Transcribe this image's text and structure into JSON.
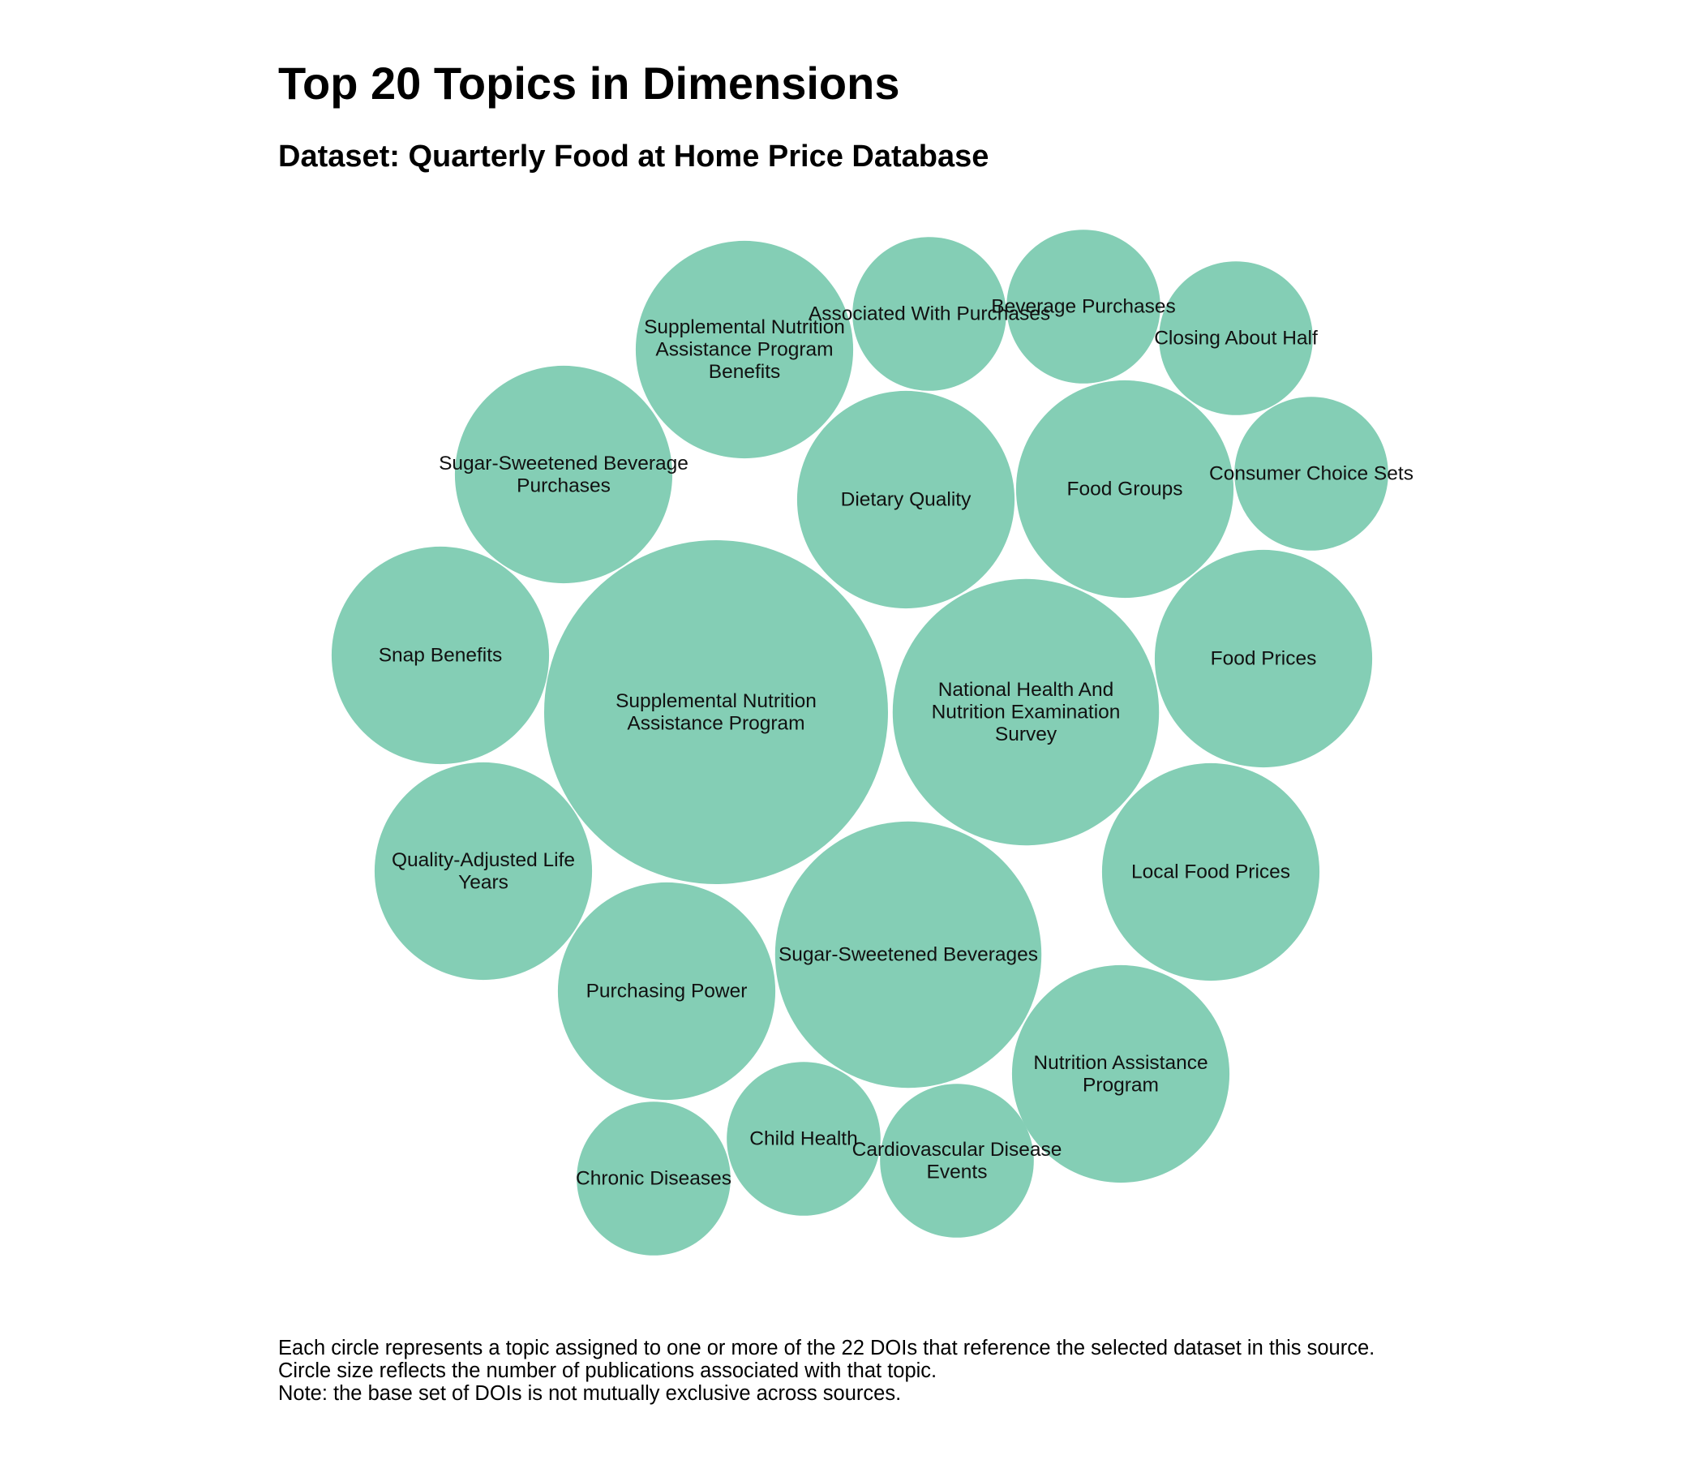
{
  "chart_data": {
    "type": "bubble",
    "title": "Top 20 Topics in Dimensions",
    "subtitle": "Dataset: Quarterly Food at Home Price Database",
    "bubble_color": "#84CEB5",
    "bubbles": [
      {
        "name": "Supplemental Nutrition Assistance Program",
        "value": 10,
        "lines": [
          "Supplemental Nutrition",
          "Assistance Program"
        ]
      },
      {
        "name": "National Health And Nutrition Examination Survey",
        "value": 6,
        "lines": [
          "National Health And",
          "Nutrition Examination",
          "Survey"
        ]
      },
      {
        "name": "Sugar-Sweetened Beverages",
        "value": 6,
        "lines": [
          "Sugar-Sweetened Beverages"
        ]
      },
      {
        "name": "Supplemental Nutrition Assistance Program Benefits",
        "value": 4,
        "lines": [
          "Supplemental Nutrition",
          "Assistance Program",
          "Benefits"
        ]
      },
      {
        "name": "Sugar-Sweetened Beverage Purchases",
        "value": 4,
        "lines": [
          "Sugar-Sweetened Beverage",
          "Purchases"
        ]
      },
      {
        "name": "Dietary Quality",
        "value": 4,
        "lines": [
          "Dietary Quality"
        ]
      },
      {
        "name": "Food Groups",
        "value": 4,
        "lines": [
          "Food Groups"
        ]
      },
      {
        "name": "Snap Benefits",
        "value": 4,
        "lines": [
          "Snap Benefits"
        ]
      },
      {
        "name": "Food Prices",
        "value": 4,
        "lines": [
          "Food Prices"
        ]
      },
      {
        "name": "Quality-Adjusted Life Years",
        "value": 4,
        "lines": [
          "Quality-Adjusted Life",
          "Years"
        ]
      },
      {
        "name": "Local Food Prices",
        "value": 4,
        "lines": [
          "Local Food Prices"
        ]
      },
      {
        "name": "Purchasing Power",
        "value": 4,
        "lines": [
          "Purchasing Power"
        ]
      },
      {
        "name": "Nutrition Assistance Program",
        "value": 4,
        "lines": [
          "Nutrition Assistance",
          "Program"
        ]
      },
      {
        "name": "Associated With Purchases",
        "value": 2,
        "lines": [
          "Associated With Purchases"
        ]
      },
      {
        "name": "Beverage Purchases",
        "value": 2,
        "lines": [
          "Beverage Purchases"
        ]
      },
      {
        "name": "Closing About Half",
        "value": 2,
        "lines": [
          "Closing About Half"
        ]
      },
      {
        "name": "Consumer Choice Sets",
        "value": 2,
        "lines": [
          "Consumer Choice Sets"
        ]
      },
      {
        "name": "Child Health",
        "value": 2,
        "lines": [
          "Child Health"
        ]
      },
      {
        "name": "Cardiovascular Disease Events",
        "value": 2,
        "lines": [
          "Cardiovascular Disease",
          "Events"
        ]
      },
      {
        "name": "Chronic Diseases",
        "value": 2,
        "lines": [
          "Chronic Diseases"
        ]
      }
    ],
    "notes": [
      "Each circle represents a topic assigned to one or more of the 22 DOIs that reference the selected dataset in this source.",
      "Circle size reflects the number of publications associated with that topic.",
      "Note: the base set of DOIs is not mutually exclusive across sources."
    ]
  }
}
